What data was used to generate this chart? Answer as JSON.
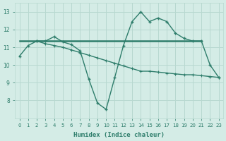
{
  "line1_x": [
    0,
    1,
    2,
    3,
    4,
    5,
    6,
    7,
    8,
    9,
    10,
    11,
    12,
    13,
    14,
    15,
    16,
    17,
    18,
    19,
    20,
    21,
    22,
    23
  ],
  "line1_y": [
    10.5,
    11.1,
    11.35,
    11.35,
    11.6,
    11.3,
    11.15,
    10.8,
    9.2,
    7.85,
    7.5,
    9.3,
    11.1,
    12.45,
    13.0,
    12.45,
    12.65,
    12.45,
    11.8,
    11.5,
    11.35,
    11.35,
    10.0,
    9.3
  ],
  "line2_x": [
    0,
    21
  ],
  "line2_y": [
    11.35,
    11.35
  ],
  "line3_x": [
    2,
    3,
    4,
    5,
    6,
    7,
    8,
    9,
    10,
    11,
    12,
    13,
    14,
    15,
    16,
    17,
    18,
    19,
    20,
    21,
    22,
    23
  ],
  "line3_y": [
    11.35,
    11.2,
    11.1,
    11.0,
    10.85,
    10.7,
    10.55,
    10.4,
    10.25,
    10.1,
    9.95,
    9.8,
    9.65,
    9.65,
    9.6,
    9.55,
    9.5,
    9.45,
    9.45,
    9.4,
    9.35,
    9.3
  ],
  "color": "#2e7d6b",
  "xlabel": "Humidex (Indice chaleur)",
  "xlim": [
    -0.5,
    23.5
  ],
  "ylim": [
    7.0,
    13.5
  ],
  "yticks": [
    8,
    9,
    10,
    11,
    12,
    13
  ],
  "xticks": [
    0,
    1,
    2,
    3,
    4,
    5,
    6,
    7,
    8,
    9,
    10,
    11,
    12,
    13,
    14,
    15,
    16,
    17,
    18,
    19,
    20,
    21,
    22,
    23
  ],
  "bg_color": "#d4ece6",
  "grid_color": "#b8d8d0"
}
